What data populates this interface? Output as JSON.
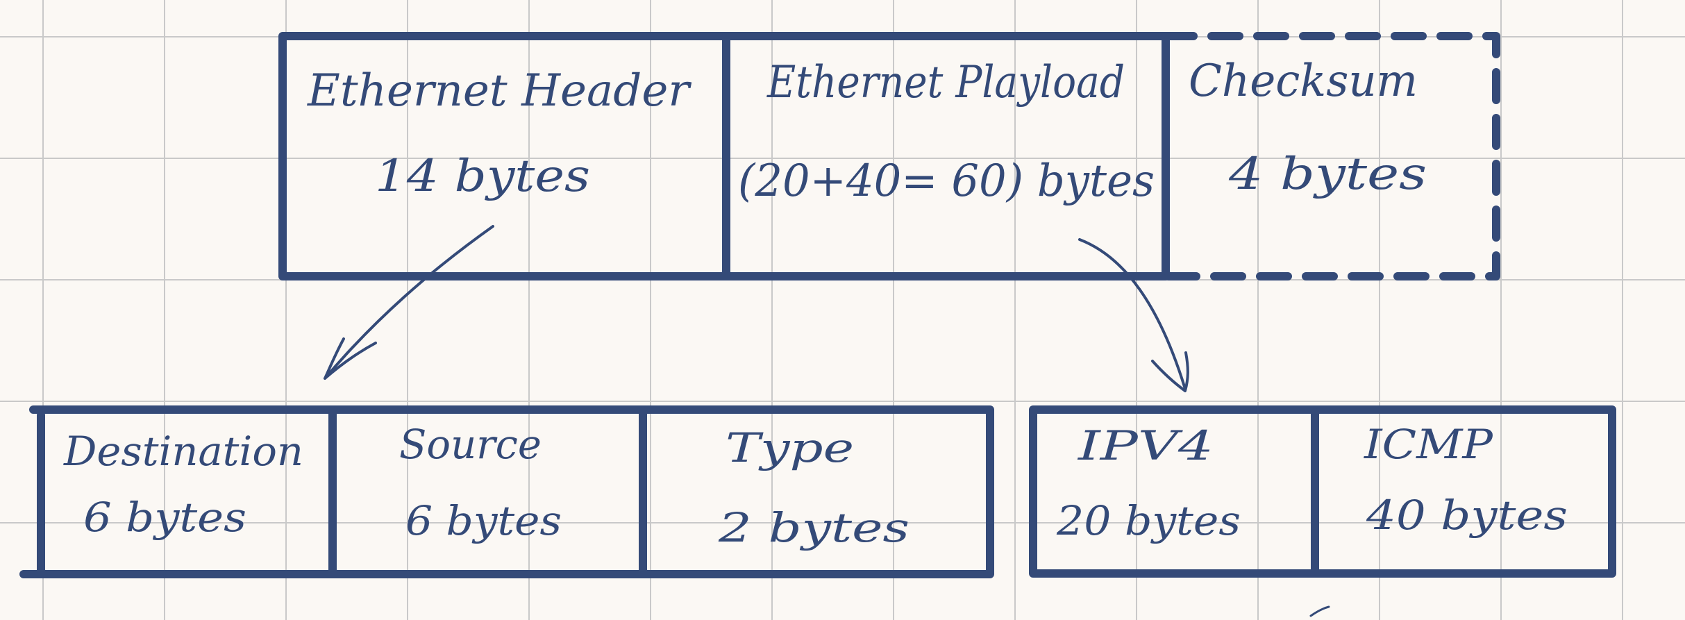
{
  "colors": {
    "paper": "#fbf8f4",
    "grid": "#c9c9c9",
    "ink": "#344a78"
  },
  "diagram": {
    "frame": {
      "header": {
        "title": "Ethernet Header",
        "size": "14 bytes"
      },
      "payload": {
        "title": "Ethernet Playload",
        "size": "(20+40= 60) bytes"
      },
      "checksum": {
        "title": "Checksum",
        "size": "4 bytes"
      }
    },
    "header_fields": {
      "destination": {
        "title": "Destination",
        "size": "6 bytes"
      },
      "source": {
        "title": "Source",
        "size": "6 bytes"
      },
      "type": {
        "title": "Type",
        "size": "2 bytes"
      }
    },
    "payload_fields": {
      "ipv4": {
        "title": "IPV4",
        "size": "20 bytes"
      },
      "icmp": {
        "title": "ICMP",
        "size": "40 bytes"
      }
    }
  }
}
